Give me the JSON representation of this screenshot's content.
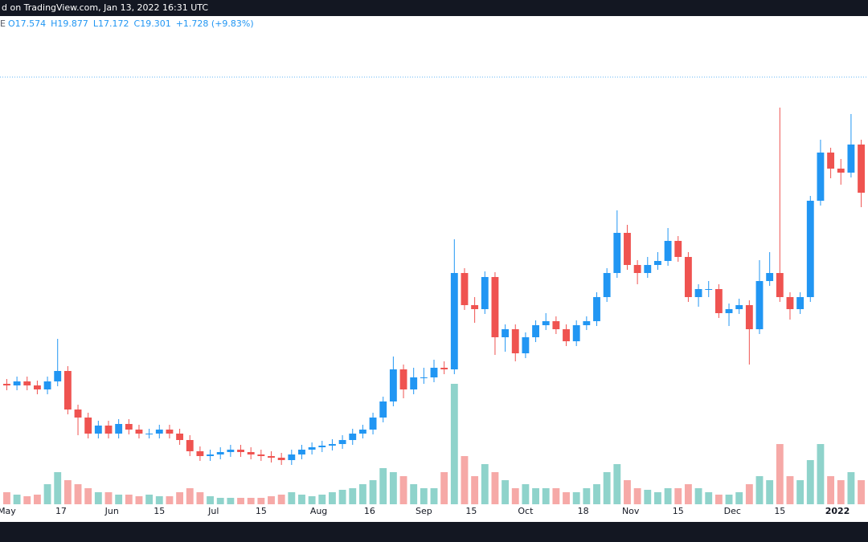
{
  "chart_data": {
    "type": "candlestick",
    "title": "d on TradingView.com, Jan 13, 2022 16:31 UTC",
    "legend_prefix": "E",
    "ohlc_readout": [
      "O17.574",
      "H19.877",
      "L17.172",
      "C19.301",
      "+1.728 (+9.83%)"
    ],
    "x": [
      0,
      3,
      6,
      9,
      12,
      15,
      18,
      21,
      24,
      27,
      30,
      33,
      36,
      39,
      42,
      45,
      48,
      51,
      54,
      57,
      60,
      63,
      66,
      69,
      72,
      75,
      78,
      81,
      84,
      87,
      90,
      93,
      96,
      99,
      102,
      105,
      108,
      111,
      114,
      117,
      120,
      123,
      126,
      129,
      132,
      135,
      138,
      141,
      144,
      147,
      150,
      153,
      156,
      159,
      162,
      165,
      168,
      171,
      174,
      177,
      180,
      183,
      186,
      189,
      192,
      195,
      198,
      201,
      204,
      207,
      210,
      213,
      216,
      219,
      222,
      225,
      228,
      231,
      234,
      237,
      240,
      243,
      246,
      249,
      252
    ],
    "open": [
      8.6,
      8.5,
      8.75,
      8.5,
      8.25,
      8.75,
      9.4,
      7.0,
      6.5,
      5.5,
      6.0,
      5.5,
      6.1,
      5.75,
      5.5,
      5.5,
      5.75,
      5.5,
      5.1,
      4.4,
      4.1,
      4.2,
      4.35,
      4.5,
      4.35,
      4.2,
      4.1,
      4.0,
      3.85,
      4.2,
      4.5,
      4.65,
      4.75,
      4.85,
      5.1,
      5.5,
      5.75,
      6.5,
      7.5,
      9.5,
      8.25,
      9.0,
      9.0,
      9.6,
      9.5,
      15.5,
      13.5,
      13.25,
      15.25,
      11.5,
      12.0,
      10.5,
      11.5,
      12.25,
      12.5,
      12.0,
      11.25,
      12.25,
      12.5,
      14.0,
      15.5,
      18.0,
      16.0,
      15.5,
      16.0,
      16.25,
      17.5,
      16.5,
      14.0,
      14.5,
      14.5,
      13.0,
      13.25,
      13.5,
      12.0,
      15.0,
      15.5,
      14.0,
      13.25,
      14.0,
      20.0,
      23.0,
      22.0,
      21.75,
      23.5
    ],
    "high": [
      8.9,
      9.05,
      9.05,
      8.8,
      9.05,
      11.4,
      9.7,
      7.3,
      6.8,
      6.3,
      6.3,
      6.4,
      6.4,
      6.05,
      5.8,
      6.05,
      6.05,
      5.8,
      5.4,
      4.7,
      4.5,
      4.65,
      4.8,
      4.8,
      4.65,
      4.5,
      4.4,
      4.3,
      4.5,
      4.8,
      4.95,
      5.05,
      5.15,
      5.4,
      5.8,
      6.05,
      6.8,
      7.8,
      10.3,
      9.8,
      9.6,
      9.6,
      10.1,
      10.0,
      17.6,
      15.8,
      14.0,
      15.6,
      15.55,
      12.3,
      12.3,
      11.8,
      12.55,
      13.0,
      12.8,
      12.3,
      12.55,
      12.8,
      14.3,
      15.8,
      19.4,
      18.5,
      16.3,
      16.5,
      16.8,
      18.3,
      17.8,
      16.8,
      14.8,
      15.0,
      14.8,
      13.6,
      13.9,
      13.8,
      16.3,
      16.8,
      25.8,
      14.3,
      14.3,
      20.3,
      23.8,
      23.3,
      22.6,
      25.4,
      23.8
    ],
    "low": [
      8.2,
      8.2,
      8.2,
      7.95,
      7.95,
      8.45,
      6.7,
      5.4,
      5.2,
      5.2,
      5.2,
      5.2,
      5.45,
      5.2,
      5.2,
      5.2,
      5.2,
      4.8,
      4.1,
      3.8,
      3.8,
      3.9,
      4.05,
      4.05,
      3.9,
      3.8,
      3.7,
      3.55,
      3.55,
      3.9,
      4.2,
      4.35,
      4.45,
      4.55,
      4.8,
      5.2,
      5.45,
      6.2,
      7.2,
      7.7,
      7.95,
      8.6,
      8.7,
      9.2,
      9.2,
      13.2,
      12.4,
      12.95,
      10.4,
      10.6,
      10.0,
      10.2,
      11.2,
      11.95,
      11.7,
      10.95,
      10.95,
      11.95,
      12.2,
      13.7,
      15.2,
      15.7,
      14.8,
      15.2,
      15.7,
      15.95,
      16.2,
      13.7,
      13.4,
      14.0,
      12.7,
      12.2,
      12.95,
      9.8,
      11.7,
      14.7,
      13.7,
      12.6,
      12.95,
      13.7,
      19.7,
      21.4,
      21.0,
      21.45,
      19.6
    ],
    "close": [
      8.5,
      8.75,
      8.5,
      8.25,
      8.75,
      9.4,
      7.0,
      6.5,
      5.5,
      6.0,
      5.5,
      6.1,
      5.75,
      5.5,
      5.5,
      5.75,
      5.5,
      5.1,
      4.4,
      4.1,
      4.2,
      4.35,
      4.5,
      4.35,
      4.2,
      4.1,
      4.0,
      3.85,
      4.2,
      4.5,
      4.65,
      4.75,
      4.85,
      5.1,
      5.5,
      5.75,
      6.5,
      7.5,
      9.5,
      8.25,
      9.0,
      9.0,
      9.6,
      9.5,
      15.5,
      13.5,
      13.25,
      15.25,
      11.5,
      12.0,
      10.5,
      11.5,
      12.25,
      12.5,
      12.0,
      11.25,
      12.25,
      12.5,
      14.0,
      15.5,
      18.0,
      16.0,
      15.5,
      16.0,
      16.25,
      17.5,
      16.5,
      14.0,
      14.5,
      14.5,
      13.0,
      13.25,
      13.5,
      12.0,
      15.0,
      15.5,
      14.0,
      13.25,
      14.0,
      20.0,
      23.0,
      22.0,
      21.75,
      23.5,
      20.5
    ],
    "volume": [
      15,
      12,
      10,
      12,
      25,
      40,
      30,
      25,
      20,
      15,
      15,
      12,
      12,
      10,
      12,
      10,
      10,
      15,
      20,
      15,
      10,
      8,
      8,
      8,
      8,
      8,
      10,
      12,
      15,
      12,
      10,
      12,
      15,
      18,
      20,
      25,
      30,
      45,
      40,
      35,
      25,
      20,
      20,
      40,
      150,
      60,
      35,
      50,
      40,
      30,
      20,
      25,
      20,
      20,
      20,
      15,
      15,
      20,
      25,
      40,
      50,
      30,
      20,
      18,
      15,
      20,
      20,
      25,
      20,
      15,
      12,
      12,
      15,
      25,
      35,
      30,
      75,
      35,
      30,
      55,
      75,
      35,
      30,
      40,
      30
    ],
    "up_color": "#2196f3",
    "down_color": "#ef5350",
    "volume_up_color": "#8fd3cb",
    "volume_down_color": "#f6a9a7",
    "price_line": 27.7,
    "xlim": [
      -2,
      254
    ],
    "ylim": [
      0,
      31.5
    ],
    "xticks": [
      {
        "value": 0,
        "label": "May"
      },
      {
        "value": 16,
        "label": "17"
      },
      {
        "value": 31,
        "label": "Jun"
      },
      {
        "value": 45,
        "label": "15"
      },
      {
        "value": 61,
        "label": "Jul"
      },
      {
        "value": 75,
        "label": "15"
      },
      {
        "value": 92,
        "label": "Aug"
      },
      {
        "value": 107,
        "label": "16"
      },
      {
        "value": 123,
        "label": "Sep"
      },
      {
        "value": 137,
        "label": "15"
      },
      {
        "value": 153,
        "label": "Oct"
      },
      {
        "value": 170,
        "label": "18"
      },
      {
        "value": 184,
        "label": "Nov"
      },
      {
        "value": 198,
        "label": "15"
      },
      {
        "value": 214,
        "label": "Dec"
      },
      {
        "value": 228,
        "label": "15"
      },
      {
        "value": 245,
        "label": "2022"
      }
    ]
  }
}
